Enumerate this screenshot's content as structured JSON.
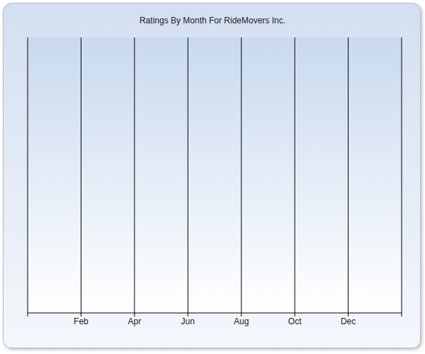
{
  "chart_data": {
    "type": "line",
    "title": "Ratings By Month For RideMovers Inc.",
    "categories": [
      null,
      "Feb",
      "Apr",
      "Jun",
      "Aug",
      "Oct",
      "Dec",
      null
    ],
    "values": [
      null,
      null,
      null,
      null,
      null,
      null,
      null,
      null
    ],
    "grid": true,
    "tick_labels": "x"
  }
}
